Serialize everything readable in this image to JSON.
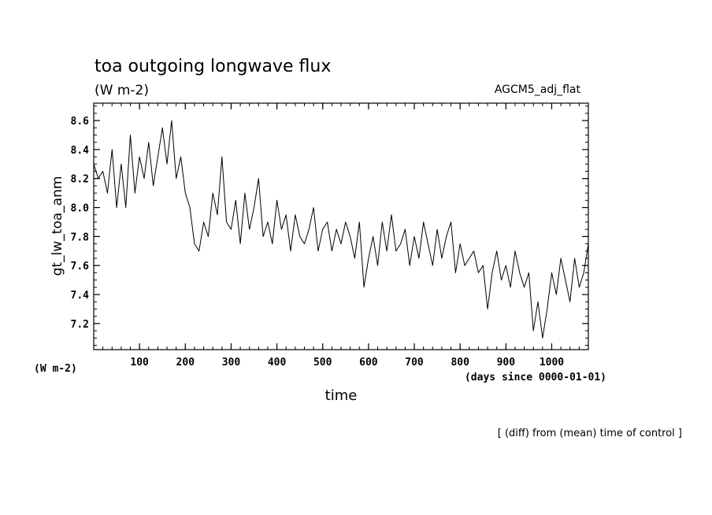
{
  "chart_data": {
    "type": "line",
    "title": "toa outgoing longwave flux",
    "units": "(W m-2)",
    "experiment": "AGCM5_adj_flat",
    "ylabel": "gt_lw_toa_anm",
    "y_units_label": "(W m-2)",
    "xlabel": "time",
    "x_units_label": "(days since 0000-01-01)",
    "note": "[ (diff) from (mean) time of control ]",
    "xlim": [
      0,
      1080
    ],
    "ylim": [
      7.02,
      8.72
    ],
    "x_ticks": [
      100,
      200,
      300,
      400,
      500,
      600,
      700,
      800,
      900,
      1000
    ],
    "y_ticks": [
      7.2,
      7.4,
      7.6,
      7.8,
      8.0,
      8.2,
      8.4,
      8.6
    ],
    "grid": false,
    "series": [
      {
        "x": [
          0,
          10,
          20,
          30,
          40,
          50,
          60,
          70,
          80,
          90,
          100,
          110,
          120,
          130,
          140,
          150,
          160,
          170,
          180,
          190,
          200,
          210,
          220,
          230,
          240,
          250,
          260,
          270,
          280,
          290,
          300,
          310,
          320,
          330,
          340,
          350,
          360,
          370,
          380,
          390,
          400,
          410,
          420,
          430,
          440,
          450,
          460,
          470,
          480,
          490,
          500,
          510,
          520,
          530,
          540,
          550,
          560,
          570,
          580,
          590,
          600,
          610,
          620,
          630,
          640,
          650,
          660,
          670,
          680,
          690,
          700,
          710,
          720,
          730,
          740,
          750,
          760,
          770,
          780,
          790,
          800,
          810,
          820,
          830,
          840,
          850,
          860,
          870,
          880,
          890,
          900,
          910,
          920,
          930,
          940,
          950,
          960,
          970,
          980,
          990,
          1000,
          1010,
          1020,
          1030,
          1040,
          1050,
          1060,
          1070,
          1080
        ],
        "values": [
          8.3,
          8.2,
          8.25,
          8.1,
          8.4,
          8.0,
          8.3,
          8.0,
          8.5,
          8.1,
          8.35,
          8.2,
          8.45,
          8.15,
          8.35,
          8.55,
          8.3,
          8.6,
          8.2,
          8.35,
          8.1,
          8.0,
          7.75,
          7.7,
          7.9,
          7.8,
          8.1,
          7.95,
          8.35,
          7.9,
          7.85,
          8.05,
          7.75,
          8.1,
          7.85,
          8.0,
          8.2,
          7.8,
          7.9,
          7.75,
          8.05,
          7.85,
          7.95,
          7.7,
          7.95,
          7.8,
          7.75,
          7.85,
          8.0,
          7.7,
          7.85,
          7.9,
          7.7,
          7.85,
          7.75,
          7.9,
          7.8,
          7.65,
          7.9,
          7.45,
          7.65,
          7.8,
          7.6,
          7.9,
          7.7,
          7.95,
          7.7,
          7.75,
          7.85,
          7.6,
          7.8,
          7.65,
          7.9,
          7.75,
          7.6,
          7.85,
          7.65,
          7.8,
          7.9,
          7.55,
          7.75,
          7.6,
          7.65,
          7.7,
          7.55,
          7.6,
          7.3,
          7.55,
          7.7,
          7.5,
          7.6,
          7.45,
          7.7,
          7.55,
          7.45,
          7.55,
          7.15,
          7.35,
          7.1,
          7.3,
          7.55,
          7.4,
          7.65,
          7.5,
          7.35,
          7.65,
          7.45,
          7.55,
          7.75
        ]
      }
    ]
  }
}
